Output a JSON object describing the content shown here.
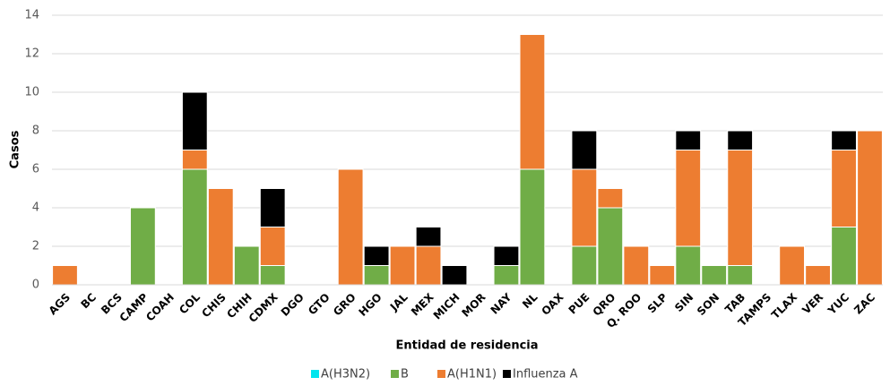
{
  "chart_data": {
    "type": "stacked-bar",
    "x_label": "Entidad de residencia",
    "y_label": "Casos",
    "categories": [
      "AGS",
      "BC",
      "BCS",
      "CAMP",
      "COAH",
      "COL",
      "CHIS",
      "CHIH",
      "CDMX",
      "DGO",
      "GTO",
      "GRO",
      "HGO",
      "JAL",
      "MEX",
      "MICH",
      "MOR",
      "NAY",
      "NL",
      "OAX",
      "PUE",
      "QRO",
      "Q. ROO",
      "SLP",
      "SIN",
      "SON",
      "TAB",
      "TAMPS",
      "TLAX",
      "VER",
      "YUC",
      "ZAC"
    ],
    "series": [
      {
        "name": "A(H3N2)",
        "color": "#00e5ee",
        "values": [
          0,
          0,
          0,
          0,
          0,
          0,
          0,
          0,
          0,
          0,
          0,
          0,
          0,
          0,
          0,
          0,
          0,
          0,
          0,
          0,
          0,
          0,
          0,
          0,
          0,
          0,
          0,
          0,
          0,
          0,
          0,
          0
        ]
      },
      {
        "name": "B",
        "color": "#70ad47",
        "values": [
          0,
          0,
          0,
          4,
          0,
          6,
          0,
          2,
          1,
          0,
          0,
          0,
          1,
          0,
          0,
          0,
          0,
          1,
          6,
          0,
          2,
          4,
          0,
          0,
          2,
          1,
          1,
          0,
          0,
          0,
          3,
          0
        ]
      },
      {
        "name": "A(H1N1)",
        "color": "#ed7d31",
        "values": [
          1,
          0,
          0,
          0,
          0,
          1,
          5,
          0,
          2,
          0,
          0,
          6,
          0,
          2,
          2,
          0,
          0,
          0,
          7,
          0,
          4,
          1,
          2,
          1,
          5,
          0,
          6,
          0,
          2,
          1,
          4,
          8
        ]
      },
      {
        "name": "Influenza A",
        "color": "#000000",
        "values": [
          0,
          0,
          0,
          0,
          0,
          3,
          0,
          0,
          2,
          0,
          0,
          0,
          1,
          0,
          1,
          1,
          0,
          1,
          0,
          0,
          2,
          0,
          0,
          0,
          1,
          0,
          1,
          0,
          0,
          0,
          1,
          0
        ]
      }
    ],
    "ylim": [
      0,
      14
    ],
    "yticks": [
      0,
      2,
      4,
      6,
      8,
      10,
      12,
      14
    ],
    "grid": true,
    "legend": "bottom"
  }
}
